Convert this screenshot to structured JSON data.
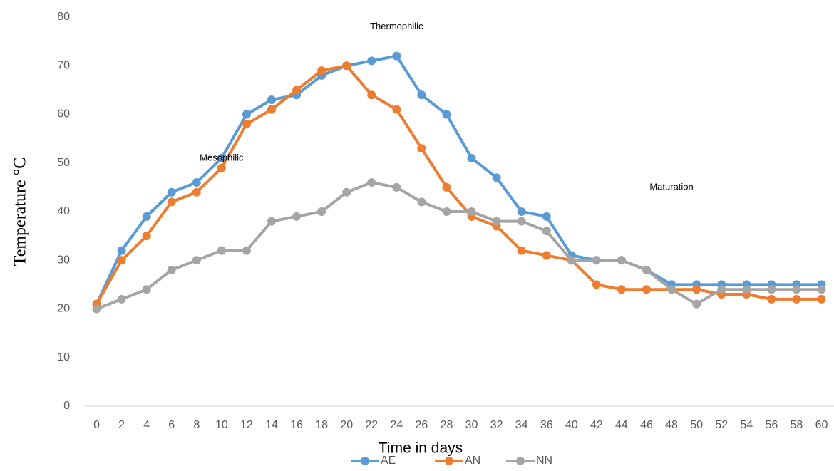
{
  "chart_data": {
    "type": "line",
    "y_label": "Temperature °C",
    "x_label": "Time in days",
    "categories": [
      0,
      2,
      4,
      6,
      8,
      10,
      12,
      14,
      16,
      18,
      20,
      22,
      24,
      26,
      28,
      30,
      32,
      34,
      36,
      40,
      42,
      44,
      46,
      48,
      50,
      52,
      54,
      56,
      58,
      60
    ],
    "series": [
      {
        "name": "AE",
        "color": "#5b9bd5",
        "values": [
          21,
          32,
          39,
          44,
          46,
          51,
          60,
          63,
          64,
          68,
          70,
          71,
          72,
          64,
          60,
          51,
          47,
          40,
          39,
          31,
          30,
          30,
          28,
          25,
          25,
          25,
          25,
          25,
          25,
          25
        ]
      },
      {
        "name": "AN",
        "color": "#ed7d31",
        "values": [
          21,
          30,
          35,
          42,
          44,
          49,
          58,
          61,
          65,
          69,
          70,
          64,
          61,
          53,
          45,
          39,
          37,
          32,
          31,
          30,
          25,
          24,
          24,
          24,
          24,
          23,
          23,
          22,
          22,
          22
        ]
      },
      {
        "name": "NN",
        "color": "#a5a5a5",
        "values": [
          20,
          22,
          24,
          28,
          30,
          32,
          32,
          38,
          39,
          40,
          44,
          46,
          45,
          42,
          40,
          40,
          38,
          38,
          36,
          30,
          30,
          30,
          28,
          24,
          21,
          24,
          24,
          24,
          24,
          24
        ]
      }
    ],
    "annotations": [
      {
        "text": "Mesophilic",
        "category": 10,
        "value": 51
      },
      {
        "text": "Thermophilic",
        "category": 24,
        "value": 78
      },
      {
        "text": "Maturation",
        "category": 48,
        "value": 45
      }
    ],
    "ylim": [
      0,
      80
    ],
    "yticks": [
      0,
      10,
      20,
      30,
      40,
      50,
      60,
      70,
      80
    ],
    "grid": false,
    "legend": "bottom"
  }
}
